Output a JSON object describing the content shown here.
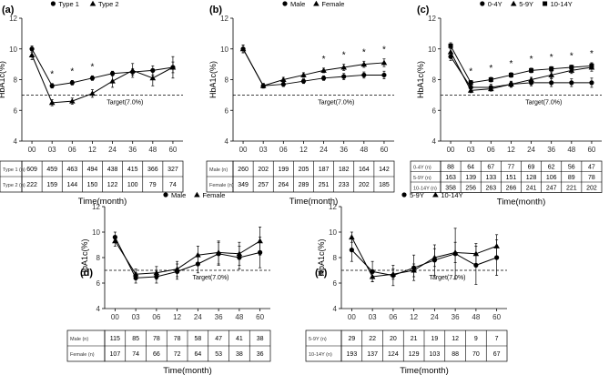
{
  "chart_data": [
    {
      "panel_label": "(a)",
      "type": "line",
      "title": "",
      "legend_position": "top",
      "xlabel": "Time(month)",
      "ylabel": "HbA1c(%)",
      "categories": [
        "00",
        "03",
        "06",
        "12",
        "24",
        "36",
        "48",
        "60"
      ],
      "ylim": [
        4,
        12
      ],
      "yticks": [
        4,
        6,
        8,
        10,
        12
      ],
      "reference_line": {
        "value": 7.0,
        "label": "Target(7.0%)"
      },
      "significance": [
        "",
        "*",
        "*",
        "*",
        "",
        "",
        "",
        ""
      ],
      "series": [
        {
          "name": "Type 1",
          "marker": "circle",
          "values": [
            10.0,
            7.6,
            7.8,
            8.1,
            8.4,
            8.5,
            8.6,
            8.8
          ],
          "errors": [
            0.2,
            0.15,
            0.15,
            0.15,
            0.15,
            0.2,
            0.3,
            0.35
          ]
        },
        {
          "name": "Type 2",
          "marker": "triangle",
          "values": [
            9.6,
            6.5,
            6.6,
            7.1,
            7.9,
            8.6,
            8.1,
            8.8
          ],
          "errors": [
            0.3,
            0.2,
            0.2,
            0.25,
            0.4,
            0.45,
            0.5,
            0.7
          ]
        }
      ],
      "table": {
        "rows": [
          {
            "label": "Type 1 (n)",
            "values": [
              "609",
              "459",
              "463",
              "494",
              "438",
              "415",
              "366",
              "327"
            ]
          },
          {
            "label": "Type 2 (n)",
            "values": [
              "222",
              "159",
              "144",
              "150",
              "122",
              "100",
              "79",
              "74"
            ]
          }
        ]
      }
    },
    {
      "panel_label": "(b)",
      "type": "line",
      "title": "",
      "legend_position": "top",
      "xlabel": "Time(month)",
      "ylabel": "HbA1c(%)",
      "categories": [
        "00",
        "03",
        "06",
        "12",
        "24",
        "36",
        "48",
        "60"
      ],
      "ylim": [
        4,
        12
      ],
      "yticks": [
        4,
        6,
        8,
        10,
        12
      ],
      "reference_line": {
        "value": 7.0,
        "label": "Target(7.0%)"
      },
      "significance": [
        "",
        "",
        "",
        "",
        "*",
        "*",
        "*",
        "*"
      ],
      "series": [
        {
          "name": "Male",
          "marker": "circle",
          "values": [
            10.0,
            7.6,
            7.7,
            7.9,
            8.1,
            8.2,
            8.3,
            8.3
          ],
          "errors": [
            0.25,
            0.15,
            0.15,
            0.15,
            0.15,
            0.2,
            0.2,
            0.25
          ]
        },
        {
          "name": "Female",
          "marker": "triangle",
          "values": [
            10.0,
            7.6,
            8.0,
            8.3,
            8.6,
            8.8,
            9.0,
            9.1
          ],
          "errors": [
            0.25,
            0.15,
            0.15,
            0.15,
            0.15,
            0.2,
            0.2,
            0.25
          ]
        }
      ],
      "table": {
        "rows": [
          {
            "label": "Male (n)",
            "values": [
              "260",
              "202",
              "199",
              "205",
              "187",
              "182",
              "164",
              "142"
            ]
          },
          {
            "label": "Female (n)",
            "values": [
              "349",
              "257",
              "264",
              "289",
              "251",
              "233",
              "202",
              "185"
            ]
          }
        ]
      }
    },
    {
      "panel_label": "(c)",
      "type": "line",
      "title": "",
      "legend_position": "top",
      "xlabel": "Time(month)",
      "ylabel": "HbA1c(%)",
      "categories": [
        "00",
        "03",
        "06",
        "12",
        "24",
        "36",
        "48",
        "60"
      ],
      "ylim": [
        4,
        12
      ],
      "yticks": [
        4,
        6,
        8,
        10,
        12
      ],
      "reference_line": {
        "value": 7.0,
        "label": "Target(7.0%)"
      },
      "significance": [
        "",
        "*",
        "*",
        "*",
        "*",
        "*",
        "*",
        "*"
      ],
      "series": [
        {
          "name": "0-4Y",
          "marker": "circle",
          "values": [
            9.5,
            7.5,
            7.5,
            7.7,
            7.8,
            7.8,
            7.8,
            7.8
          ],
          "errors": [
            0.25,
            0.2,
            0.2,
            0.2,
            0.2,
            0.25,
            0.25,
            0.3
          ]
        },
        {
          "name": "5-9Y",
          "marker": "triangle",
          "values": [
            9.8,
            7.3,
            7.4,
            7.7,
            8.0,
            8.3,
            8.6,
            8.8
          ],
          "errors": [
            0.2,
            0.15,
            0.15,
            0.15,
            0.15,
            0.2,
            0.2,
            0.25
          ]
        },
        {
          "name": "10-14Y",
          "marker": "square",
          "values": [
            10.2,
            7.8,
            8.0,
            8.3,
            8.6,
            8.7,
            8.8,
            8.9
          ],
          "errors": [
            0.2,
            0.15,
            0.15,
            0.15,
            0.15,
            0.15,
            0.15,
            0.2
          ]
        }
      ],
      "table": {
        "rows": [
          {
            "label": "0-4Y (n)",
            "values": [
              "88",
              "64",
              "67",
              "77",
              "69",
              "62",
              "56",
              "47"
            ]
          },
          {
            "label": "5-9Y (n)",
            "values": [
              "163",
              "139",
              "133",
              "151",
              "128",
              "106",
              "89",
              "78"
            ]
          },
          {
            "label": "10-14Y (n)",
            "values": [
              "358",
              "256",
              "263",
              "266",
              "241",
              "247",
              "221",
              "202"
            ]
          }
        ]
      }
    },
    {
      "panel_label": "(d)",
      "type": "line",
      "title": "",
      "legend_position": "top",
      "xlabel": "Time(month)",
      "ylabel": "HbA1c(%)",
      "categories": [
        "00",
        "03",
        "06",
        "12",
        "24",
        "36",
        "48",
        "60"
      ],
      "ylim": [
        4,
        12
      ],
      "yticks": [
        4,
        6,
        8,
        10,
        12
      ],
      "reference_line": {
        "value": 7.0,
        "label": "Target(7.0%)"
      },
      "significance": [
        "",
        "",
        "",
        "",
        "",
        "",
        "",
        ""
      ],
      "series": [
        {
          "name": "Male",
          "marker": "circle",
          "values": [
            9.6,
            6.4,
            6.5,
            6.9,
            7.5,
            8.3,
            8.0,
            8.4
          ],
          "errors": [
            0.4,
            0.4,
            0.5,
            0.6,
            0.7,
            0.9,
            0.9,
            1.2
          ]
        },
        {
          "name": "Female",
          "marker": "triangle",
          "values": [
            9.3,
            6.7,
            6.8,
            7.1,
            8.2,
            8.4,
            8.3,
            9.3
          ],
          "errors": [
            0.4,
            0.4,
            0.5,
            0.6,
            0.7,
            0.9,
            0.9,
            1.1
          ]
        }
      ],
      "table": {
        "rows": [
          {
            "label": "Male (n)",
            "values": [
              "115",
              "85",
              "78",
              "78",
              "58",
              "47",
              "41",
              "38"
            ]
          },
          {
            "label": "Female (n)",
            "values": [
              "107",
              "74",
              "66",
              "72",
              "64",
              "53",
              "38",
              "36"
            ]
          }
        ]
      }
    },
    {
      "panel_label": "(e)",
      "type": "line",
      "title": "",
      "legend_position": "top",
      "xlabel": "Time(month)",
      "ylabel": "HbA1c(%)",
      "categories": [
        "00",
        "03",
        "06",
        "12",
        "24",
        "36",
        "48",
        "60"
      ],
      "ylim": [
        4,
        12
      ],
      "yticks": [
        4,
        6,
        8,
        10,
        12
      ],
      "reference_line": {
        "value": 7.0,
        "label": "Target(7.0%)"
      },
      "significance": [
        "",
        "",
        "",
        "",
        "",
        "",
        "",
        ""
      ],
      "series": [
        {
          "name": "5-9Y",
          "marker": "circle",
          "values": [
            8.6,
            6.9,
            6.6,
            7.2,
            7.8,
            8.3,
            7.4,
            8.0
          ],
          "errors": [
            0.9,
            0.8,
            0.8,
            1.0,
            1.2,
            2.0,
            1.5,
            1.4
          ]
        },
        {
          "name": "10-14Y",
          "marker": "triangle",
          "values": [
            9.6,
            6.5,
            6.7,
            7.0,
            8.0,
            8.4,
            8.3,
            8.9
          ],
          "errors": [
            0.4,
            0.4,
            0.4,
            0.5,
            0.7,
            0.8,
            0.8,
            0.9
          ]
        }
      ],
      "table": {
        "rows": [
          {
            "label": "5-9Y (n)",
            "values": [
              "29",
              "22",
              "20",
              "21",
              "19",
              "12",
              "9",
              "7"
            ]
          },
          {
            "label": "10-14Y (n)",
            "values": [
              "193",
              "137",
              "124",
              "129",
              "103",
              "88",
              "70",
              "67"
            ]
          }
        ]
      }
    }
  ]
}
